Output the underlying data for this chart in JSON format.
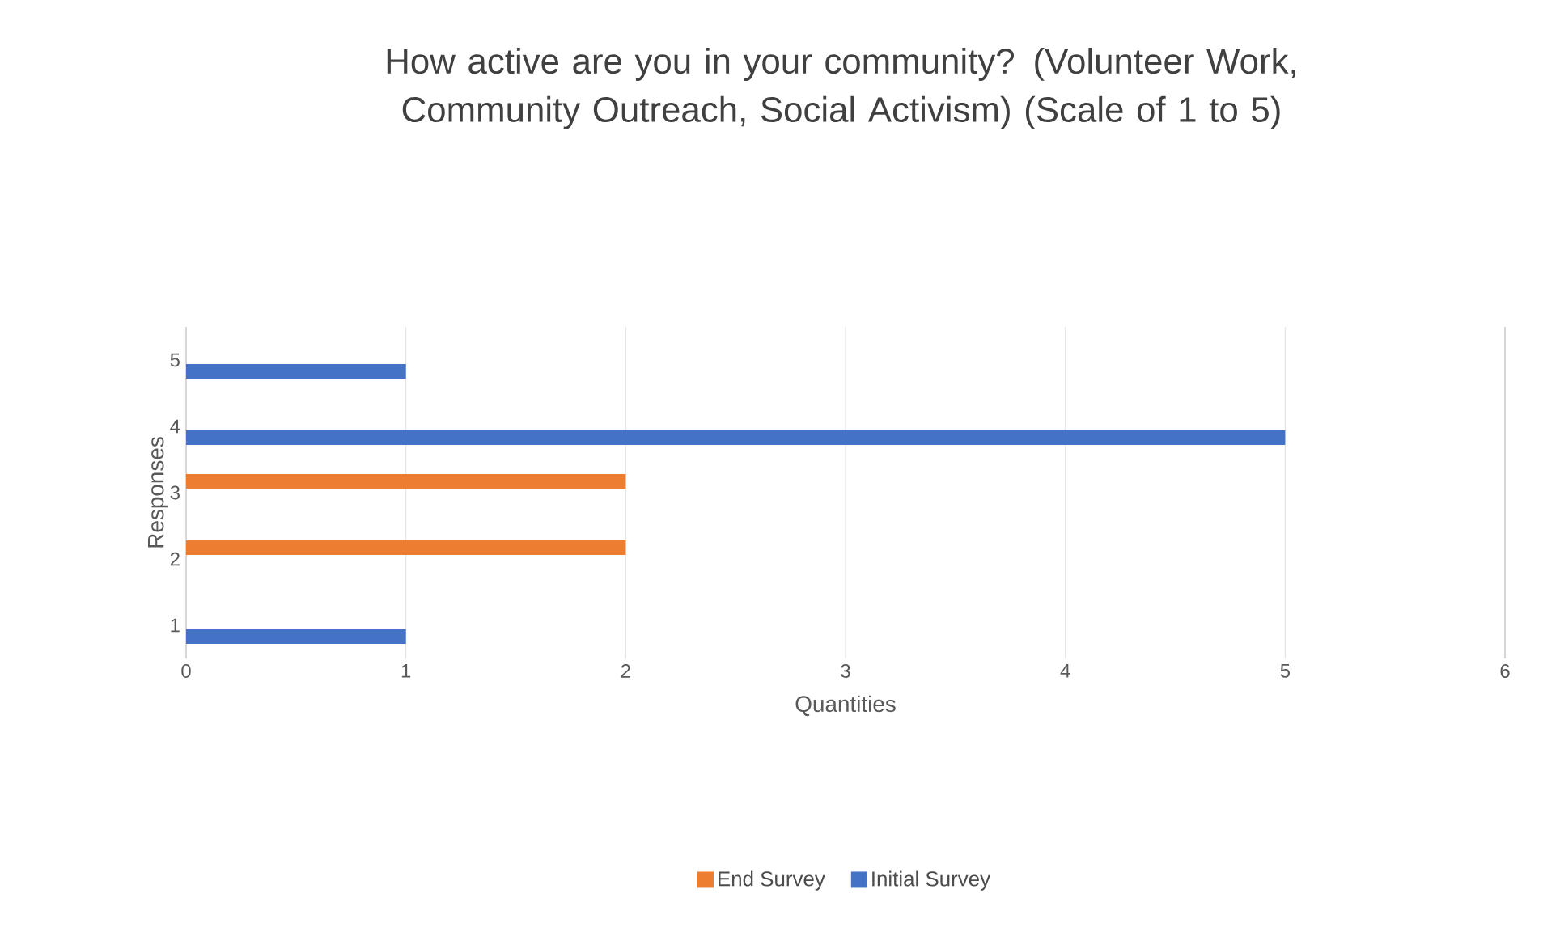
{
  "chart_data": {
    "type": "bar",
    "orientation": "horizontal",
    "title": "How active are you in your community? (Volunteer Work, Community Outreach, Social Activism) (Scale of 1 to 5)",
    "xlabel": "Quantities",
    "ylabel": "Responses",
    "categories": [
      "5",
      "4",
      "3",
      "2",
      "1"
    ],
    "series": [
      {
        "name": "End Survey",
        "color": "#ed7d31",
        "values": [
          0,
          0,
          2,
          2,
          0
        ]
      },
      {
        "name": "Initial Survey",
        "color": "#4472c4",
        "values": [
          1,
          5,
          0,
          0,
          1
        ]
      }
    ],
    "xlim": [
      0,
      6
    ],
    "xticks": [
      0,
      1,
      2,
      3,
      4,
      5,
      6
    ],
    "grid": "x",
    "legend": "bottom"
  }
}
